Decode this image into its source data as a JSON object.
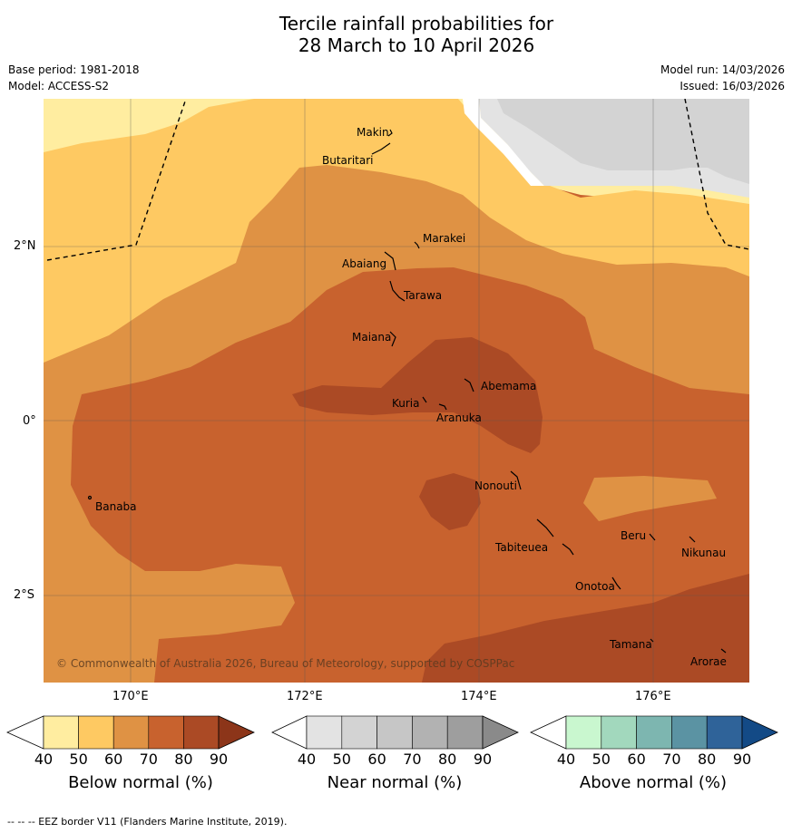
{
  "title_line1": "Tercile rainfall probabilities for",
  "title_line2": "28 March to 10 April 2026",
  "base_period": "Base period: 1981-2018",
  "model": "Model: ACCESS-S2",
  "model_run": "Model run: 14/03/2026",
  "issued": "Issued: 16/03/2026",
  "axes": {
    "lat_labels": [
      "2°N",
      "0°",
      "2°S"
    ],
    "lon_labels": [
      "170°E",
      "172°E",
      "174°E",
      "176°E"
    ]
  },
  "places": [
    {
      "name": "Makin",
      "lat": 3.4,
      "lon": 172.95
    },
    {
      "name": "Butaritari",
      "lat": 3.08,
      "lon": 172.75
    },
    {
      "name": "Marakei",
      "lat": 2.0,
      "lon": 173.28
    },
    {
      "name": "Abaiang",
      "lat": 1.83,
      "lon": 172.95
    },
    {
      "name": "Tarawa",
      "lat": 1.4,
      "lon": 173.05
    },
    {
      "name": "Maiana",
      "lat": 0.93,
      "lon": 173.0
    },
    {
      "name": "Abemama",
      "lat": 0.37,
      "lon": 173.88
    },
    {
      "name": "Kuria",
      "lat": 0.23,
      "lon": 173.4
    },
    {
      "name": "Aranuka",
      "lat": 0.17,
      "lon": 173.6
    },
    {
      "name": "Nonouti",
      "lat": -0.65,
      "lon": 174.45
    },
    {
      "name": "Banaba",
      "lat": -0.87,
      "lon": 169.54
    },
    {
      "name": "Tabiteuea",
      "lat": -1.3,
      "lon": 174.9
    },
    {
      "name": "Beru",
      "lat": -1.33,
      "lon": 175.97
    },
    {
      "name": "Nikunau",
      "lat": -1.38,
      "lon": 176.45
    },
    {
      "name": "Onotoa",
      "lat": -1.83,
      "lon": 175.55
    },
    {
      "name": "Tamana",
      "lat": -2.5,
      "lon": 175.98
    },
    {
      "name": "Arorae",
      "lat": -2.65,
      "lon": 176.82
    }
  ],
  "copyright": "© Commonwealth of Australia 2026, Bureau of Meteorology, supported by COSPPac",
  "legends": [
    {
      "label": "Below normal (%)",
      "ticks": [
        "40",
        "50",
        "60",
        "70",
        "80",
        "90"
      ],
      "colors": [
        "#ffffff",
        "#ffeda0",
        "#fec962",
        "#df9244",
        "#c8622e",
        "#ab4a25",
        "#8c3519"
      ]
    },
    {
      "label": "Near normal (%)",
      "ticks": [
        "40",
        "50",
        "60",
        "70",
        "80",
        "90"
      ],
      "colors": [
        "#ffffff",
        "#e3e3e3",
        "#d3d3d3",
        "#c6c6c6",
        "#b2b2b2",
        "#9e9e9e",
        "#8a8a8a"
      ]
    },
    {
      "label": "Above normal (%)",
      "ticks": [
        "40",
        "50",
        "60",
        "70",
        "80",
        "90"
      ],
      "colors": [
        "#ffffff",
        "#c9f7cf",
        "#a2d8bd",
        "#7db6b0",
        "#5b93a3",
        "#2f6399",
        "#134a86"
      ]
    }
  ],
  "footnote": "--  --  -- EEZ border V11 (Flanders Marine Institute, 2019)."
}
